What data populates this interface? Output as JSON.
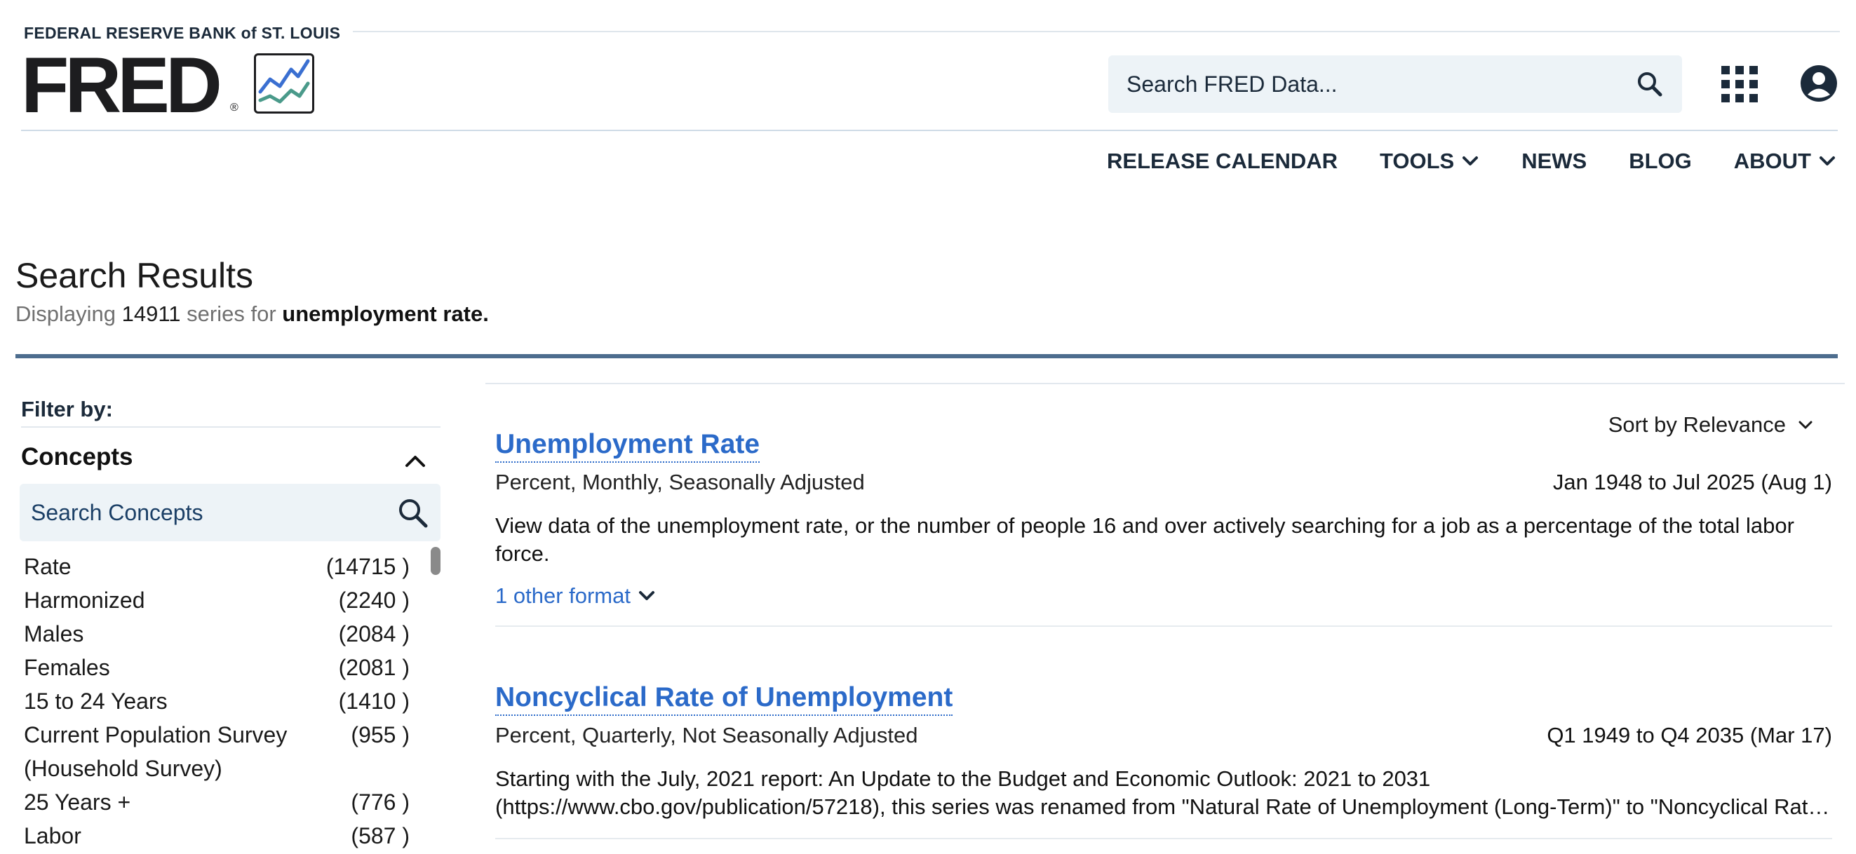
{
  "header": {
    "org_name": "FEDERAL RESERVE BANK of ST. LOUIS",
    "logo_text": "FRED",
    "reg_mark": "®",
    "search_placeholder": "Search FRED Data...",
    "icons": {
      "search": "search-icon",
      "apps": "grid-icon",
      "account": "user-icon"
    }
  },
  "nav": {
    "items": [
      {
        "label": "RELEASE CALENDAR",
        "dropdown": false
      },
      {
        "label": "TOOLS",
        "dropdown": true
      },
      {
        "label": "NEWS",
        "dropdown": false
      },
      {
        "label": "BLOG",
        "dropdown": false
      },
      {
        "label": "ABOUT",
        "dropdown": true
      }
    ]
  },
  "search_results": {
    "title": "Search Results",
    "prefix": "Displaying",
    "count": "14911",
    "middle": "series for",
    "query": "unemployment rate."
  },
  "sidebar": {
    "filter_label": "Filter by:",
    "concepts_title": "Concepts",
    "concepts_search_placeholder": "Search Concepts",
    "concepts": [
      {
        "name": "Rate",
        "count": "(14715 )"
      },
      {
        "name": "Harmonized",
        "count": "(2240 )"
      },
      {
        "name": "Males",
        "count": "(2084 )"
      },
      {
        "name": "Females",
        "count": "(2081 )"
      },
      {
        "name": "15 to 24 Years",
        "count": "(1410 )"
      },
      {
        "name": "Current Population Survey (Household Survey)",
        "count": "(955 )"
      },
      {
        "name": "25 Years +",
        "count": "(776 )"
      },
      {
        "name": "Labor",
        "count": "(587 )"
      }
    ]
  },
  "results": {
    "sort_label": "Sort by Relevance",
    "items": [
      {
        "title": "Unemployment Rate",
        "units": "Percent, Monthly, Seasonally Adjusted",
        "range": "Jan 1948 to Jul 2025 (Aug 1)",
        "description": "View data of the unemployment rate, or the number of people 16 and over actively searching for a job as a percentage of the total labor force.",
        "other_format": "1 other format"
      },
      {
        "title": "Noncyclical Rate of Unemployment",
        "units": "Percent, Quarterly, Not Seasonally Adjusted",
        "range": "Q1 1949 to Q4 2035 (Mar 17)",
        "description_line1": "Starting with the July, 2021 report: An Update to the Budget and Economic Outlook: 2021 to 2031",
        "description_line2": "(https://www.cbo.gov/publication/57218), this series was renamed from \"Natural Rate of Unemployment (Long-Term)\" to \"Noncyclical Rate of Unemployment\""
      }
    ]
  },
  "colors": {
    "link_blue": "#2b6ac9",
    "navy": "#1b2a3a",
    "divider_blue": "#4d6d8e",
    "search_bg": "#edf3f7",
    "logo_line_blue": "#3a6fd1",
    "logo_line_green": "#4a9a8a"
  }
}
